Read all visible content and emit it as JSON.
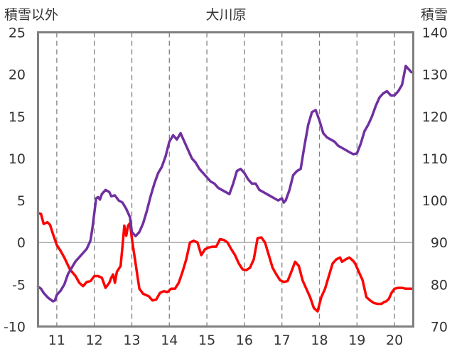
{
  "chart_data": {
    "type": "line",
    "title": "大川原",
    "left_axis_label": "積雪以外",
    "right_axis_label": "積雪",
    "x_ticks": [
      "11",
      "12",
      "13",
      "14",
      "15",
      "16",
      "17",
      "18",
      "19",
      "20"
    ],
    "xlim": [
      10.5,
      20.5
    ],
    "ylim_left": [
      -10,
      25
    ],
    "ylim_right": [
      70,
      140
    ],
    "y_ticks_left": [
      25,
      20,
      15,
      10,
      5,
      0,
      -5,
      -10
    ],
    "y_ticks_right": [
      140,
      130,
      120,
      110,
      100,
      90,
      80,
      70
    ],
    "grid": "vertical dashed at each x tick",
    "series": [
      {
        "color": "#ff0000",
        "axis": "left",
        "x": [
          10.5,
          10.58,
          10.65,
          10.75,
          10.82,
          10.9,
          11.0,
          11.1,
          11.2,
          11.35,
          11.5,
          11.6,
          11.7,
          11.8,
          11.9,
          12.0,
          12.1,
          12.2,
          12.3,
          12.4,
          12.45,
          12.5,
          12.55,
          12.6,
          12.7,
          12.75,
          12.8,
          12.85,
          12.9,
          12.95,
          13.0,
          13.05,
          13.1,
          13.15,
          13.2,
          13.3,
          13.35,
          13.45,
          13.55,
          13.65,
          13.75,
          13.85,
          13.95,
          14.05,
          14.15,
          14.25,
          14.35,
          14.45,
          14.55,
          14.65,
          14.75,
          14.85,
          14.95,
          15.05,
          15.15,
          15.25,
          15.35,
          15.45,
          15.55,
          15.65,
          15.75,
          15.85,
          15.95,
          16.05,
          16.15,
          16.25,
          16.35,
          16.45,
          16.55,
          16.65,
          16.75,
          16.85,
          16.95,
          17.05,
          17.15,
          17.25,
          17.35,
          17.45,
          17.55,
          17.65,
          17.75,
          17.85,
          17.95,
          18.05,
          18.15,
          18.25,
          18.35,
          18.45,
          18.55,
          18.6,
          18.7,
          18.8,
          18.9,
          18.95,
          19.05,
          19.15,
          19.25,
          19.35,
          19.45,
          19.55,
          19.65,
          19.72,
          19.78,
          19.85,
          19.92,
          20.0,
          20.1,
          20.2,
          20.3,
          20.4,
          20.45
        ],
        "y": [
          3.5,
          3.4,
          2.2,
          2.4,
          2.1,
          1.0,
          -0.3,
          -1.0,
          -1.8,
          -3.2,
          -4.0,
          -4.8,
          -5.2,
          -4.7,
          -4.6,
          -4.0,
          -4.0,
          -4.2,
          -5.4,
          -4.8,
          -4.2,
          -3.8,
          -4.8,
          -3.5,
          -2.8,
          -0.5,
          2.0,
          0.8,
          2.0,
          2.3,
          0.5,
          -1.0,
          -2.5,
          -4.0,
          -5.5,
          -6.1,
          -6.2,
          -6.4,
          -6.9,
          -6.8,
          -6.0,
          -5.8,
          -5.9,
          -5.5,
          -5.5,
          -4.8,
          -3.5,
          -2.0,
          0.0,
          0.2,
          0.0,
          -1.5,
          -0.8,
          -0.6,
          -0.5,
          -0.5,
          0.4,
          0.3,
          0.0,
          -0.8,
          -1.5,
          -2.5,
          -3.2,
          -3.3,
          -3.0,
          -2.0,
          0.5,
          0.6,
          0.0,
          -1.5,
          -3.0,
          -3.8,
          -4.5,
          -4.7,
          -4.6,
          -3.5,
          -2.3,
          -2.8,
          -4.5,
          -5.5,
          -6.5,
          -7.8,
          -8.2,
          -6.5,
          -5.5,
          -4.0,
          -2.5,
          -2.0,
          -1.8,
          -2.3,
          -2.0,
          -1.8,
          -2.2,
          -2.5,
          -3.5,
          -4.5,
          -6.5,
          -6.9,
          -7.2,
          -7.3,
          -7.3,
          -7.1,
          -7.0,
          -6.7,
          -6.0,
          -5.5,
          -5.4,
          -5.4,
          -5.5,
          -5.5,
          -5.5
        ]
      },
      {
        "color": "#7030a0",
        "axis": "right",
        "x": [
          10.5,
          10.58,
          10.65,
          10.75,
          10.82,
          10.9,
          10.95,
          11.0,
          11.1,
          11.2,
          11.3,
          11.4,
          11.5,
          11.6,
          11.7,
          11.8,
          11.9,
          11.95,
          12.0,
          12.05,
          12.1,
          12.15,
          12.2,
          12.3,
          12.4,
          12.45,
          12.55,
          12.65,
          12.75,
          12.85,
          12.95,
          13.0,
          13.1,
          13.2,
          13.3,
          13.4,
          13.5,
          13.6,
          13.7,
          13.8,
          13.9,
          14.0,
          14.1,
          14.2,
          14.3,
          14.4,
          14.5,
          14.6,
          14.7,
          14.8,
          14.9,
          15.0,
          15.1,
          15.2,
          15.3,
          15.4,
          15.5,
          15.6,
          15.7,
          15.8,
          15.9,
          16.0,
          16.1,
          16.2,
          16.3,
          16.4,
          16.5,
          16.6,
          16.7,
          16.8,
          16.9,
          17.0,
          17.05,
          17.1,
          17.2,
          17.3,
          17.4,
          17.5,
          17.6,
          17.7,
          17.8,
          17.9,
          18.0,
          18.1,
          18.2,
          18.3,
          18.4,
          18.5,
          18.6,
          18.7,
          18.8,
          18.9,
          19.0,
          19.1,
          19.2,
          19.3,
          19.4,
          19.5,
          19.6,
          19.7,
          19.8,
          19.9,
          20.0,
          20.1,
          20.2,
          20.3,
          20.4,
          20.45
        ],
        "y": [
          79.5,
          79.0,
          78.0,
          77.0,
          76.5,
          76.0,
          76.2,
          77.5,
          78.5,
          80.0,
          82.5,
          84.0,
          85.5,
          86.5,
          87.5,
          88.5,
          90.5,
          93.5,
          97.0,
          100.5,
          100.8,
          100.2,
          101.5,
          102.5,
          102.0,
          101.0,
          101.2,
          100.0,
          99.5,
          98.0,
          96.0,
          92.5,
          91.5,
          92.5,
          94.5,
          97.5,
          101.0,
          104.0,
          106.5,
          108.0,
          110.5,
          114.0,
          115.5,
          114.5,
          116.0,
          114.0,
          112.0,
          110.0,
          109.0,
          107.5,
          106.5,
          105.5,
          104.5,
          104.0,
          103.0,
          102.5,
          102.0,
          101.5,
          104.0,
          107.0,
          107.5,
          106.5,
          105.0,
          104.0,
          104.0,
          102.5,
          102.0,
          101.5,
          101.0,
          100.5,
          100.0,
          100.5,
          99.5,
          100.0,
          102.5,
          106.0,
          107.0,
          107.5,
          113.0,
          118.0,
          121.0,
          121.5,
          119.0,
          116.0,
          115.0,
          114.5,
          114.0,
          113.0,
          112.5,
          112.0,
          111.5,
          111.0,
          111.2,
          113.5,
          116.5,
          118.0,
          120.0,
          122.5,
          124.5,
          125.5,
          126.0,
          125.0,
          125.0,
          126.0,
          127.5,
          132.0,
          131.0,
          130.5
        ]
      }
    ]
  }
}
